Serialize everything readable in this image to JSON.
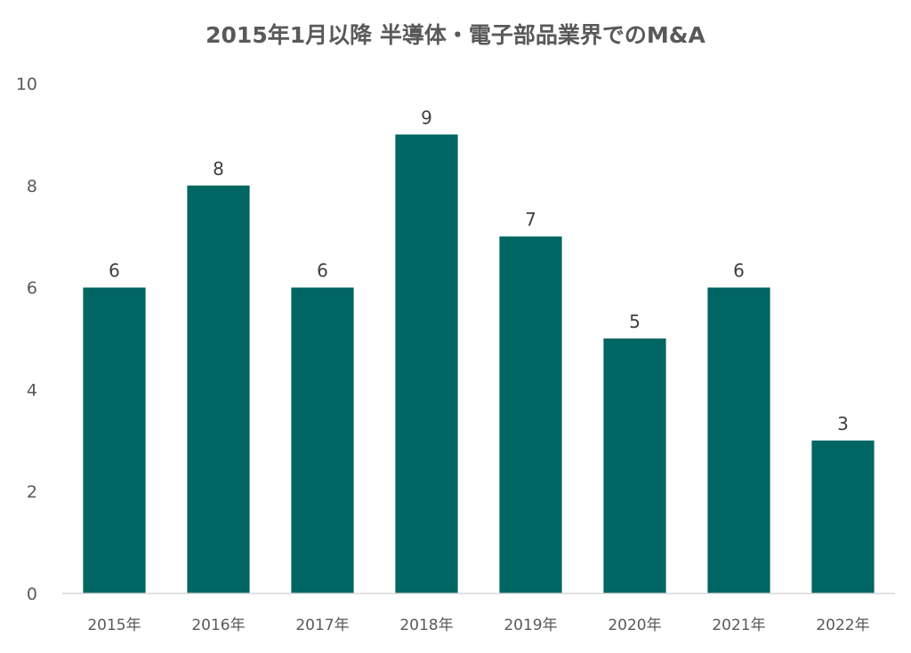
{
  "chart_data": {
    "type": "bar",
    "title": "2015年1月以降 半導体・電子部品業界でのM&A",
    "xlabel": "",
    "ylabel": "",
    "categories": [
      "2015年",
      "2016年",
      "2017年",
      "2018年",
      "2019年",
      "2020年",
      "2021年",
      "2022年"
    ],
    "values": [
      6,
      8,
      6,
      9,
      7,
      5,
      6,
      3
    ],
    "ylim": [
      0,
      10
    ],
    "yticks": [
      0,
      2,
      4,
      6,
      8,
      10
    ],
    "grid": false,
    "legend": "none",
    "data_labels": true,
    "bar_color": "#006663",
    "axis_color": "#d9d9d9"
  }
}
